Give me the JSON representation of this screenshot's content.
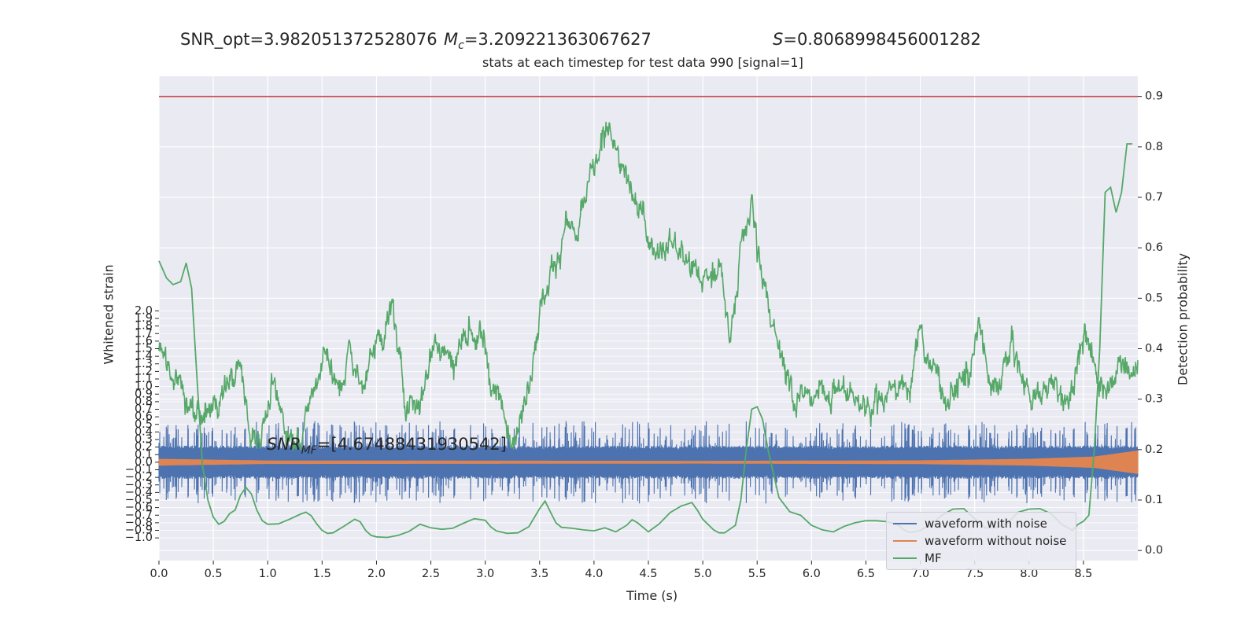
{
  "header": {
    "snr_opt": "SNR_opt=3.982051372528076",
    "mc_symbol": "M",
    "mc_sub": "c",
    "mc_value": "=3.209221363067627",
    "s_symbol": "S",
    "s_value": "=0.8068998456001282"
  },
  "chart_data": {
    "type": "line",
    "title": "stats at each timestep for test data 990 [signal=1]",
    "xlabel": "Time (s)",
    "ylabel_left": "Whitened strain",
    "ylabel_right": "Detection probability",
    "xlim": [
      0.0,
      9.0
    ],
    "ylim_left": [
      -1.3,
      5.1
    ],
    "ylim_right": [
      -0.02,
      0.94
    ],
    "xticks": [
      "0.0",
      "0.5",
      "1.0",
      "1.5",
      "2.0",
      "2.5",
      "3.0",
      "3.5",
      "4.0",
      "4.5",
      "5.0",
      "5.5",
      "6.0",
      "6.5",
      "7.0",
      "7.5",
      "8.0",
      "8.5"
    ],
    "yticks_left": [
      "2.0",
      "1.9",
      "1.8",
      "1.7",
      "1.6",
      "1.5",
      "1.4",
      "1.3",
      "1.2",
      "1.1",
      "1.0",
      "0.9",
      "0.8",
      "0.7",
      "0.6",
      "0.5",
      "0.4",
      "0.3",
      "0.2",
      "0.1",
      "0.0",
      "−0.1",
      "−0.2",
      "−0.3",
      "−0.4",
      "−0.5",
      "−0.6",
      "−0.7",
      "−0.8",
      "−0.9",
      "−1.0"
    ],
    "yticks_right": [
      "0.9",
      "0.8",
      "0.7",
      "0.6",
      "0.5",
      "0.4",
      "0.3",
      "0.2",
      "0.1",
      "0.0"
    ],
    "threshold": 0.9,
    "mf_annotation": {
      "symbol": "SNR",
      "sub": "MF",
      "value": "=[4.67488431930542]"
    },
    "colors": {
      "noisy": "#4c72b0",
      "clean": "#dd8452",
      "mf": "#55a868",
      "prob": "#55a868",
      "threshold": "#c44e52",
      "plot_bg": "#eaeaf2",
      "grid": "#ffffff"
    },
    "series": [
      {
        "name": "waveform with noise",
        "key": "noisy",
        "amplitude_core": 0.2,
        "amplitude_peak": 0.55
      },
      {
        "name": "waveform without noise",
        "key": "clean",
        "amplitude": [
          [
            0.0,
            0.03
          ],
          [
            1.0,
            0.008
          ],
          [
            5.0,
            0.003
          ],
          [
            7.0,
            0.01
          ],
          [
            8.0,
            0.03
          ],
          [
            8.6,
            0.06
          ],
          [
            9.0,
            0.14
          ]
        ]
      },
      {
        "name": "MF",
        "key": "mf",
        "x": [
          0.0,
          0.07,
          0.13,
          0.2,
          0.25,
          0.3,
          0.35,
          0.4,
          0.45,
          0.5,
          0.55,
          0.6,
          0.65,
          0.7,
          0.75,
          0.8,
          0.85,
          0.9,
          0.95,
          1.0,
          1.1,
          1.2,
          1.3,
          1.35,
          1.4,
          1.45,
          1.5,
          1.55,
          1.6,
          1.7,
          1.8,
          1.85,
          1.9,
          1.95,
          2.0,
          2.1,
          2.2,
          2.3,
          2.4,
          2.5,
          2.6,
          2.7,
          2.8,
          2.9,
          3.0,
          3.05,
          3.1,
          3.2,
          3.3,
          3.4,
          3.5,
          3.55,
          3.6,
          3.65,
          3.7,
          3.8,
          3.9,
          4.0,
          4.1,
          4.2,
          4.3,
          4.35,
          4.4,
          4.5,
          4.6,
          4.7,
          4.8,
          4.9,
          4.95,
          5.0,
          5.1,
          5.15,
          5.2,
          5.3,
          5.35,
          5.4,
          5.45,
          5.5,
          5.55,
          5.6,
          5.7,
          5.8,
          5.9,
          6.0,
          6.1,
          6.2,
          6.3,
          6.4,
          6.5,
          6.6,
          6.7,
          6.8,
          6.85,
          6.9,
          6.95,
          7.0,
          7.1,
          7.2,
          7.3,
          7.4,
          7.5,
          7.6,
          7.7,
          7.8,
          7.9,
          8.0,
          8.1,
          8.2,
          8.3,
          8.4,
          8.45,
          8.5,
          8.55,
          8.6,
          8.65,
          8.7,
          8.75,
          8.8,
          8.85,
          8.9,
          8.95
        ],
        "values": [
          0.574,
          0.54,
          0.527,
          0.533,
          0.57,
          0.52,
          0.34,
          0.17,
          0.1,
          0.066,
          0.052,
          0.058,
          0.073,
          0.08,
          0.11,
          0.125,
          0.112,
          0.08,
          0.059,
          0.052,
          0.053,
          0.062,
          0.072,
          0.076,
          0.069,
          0.053,
          0.04,
          0.034,
          0.035,
          0.048,
          0.062,
          0.057,
          0.04,
          0.03,
          0.027,
          0.026,
          0.03,
          0.038,
          0.052,
          0.045,
          0.042,
          0.044,
          0.054,
          0.063,
          0.06,
          0.047,
          0.039,
          0.034,
          0.035,
          0.047,
          0.083,
          0.098,
          0.076,
          0.055,
          0.046,
          0.044,
          0.041,
          0.039,
          0.045,
          0.037,
          0.05,
          0.061,
          0.055,
          0.037,
          0.053,
          0.075,
          0.088,
          0.095,
          0.08,
          0.062,
          0.041,
          0.035,
          0.035,
          0.05,
          0.1,
          0.2,
          0.28,
          0.285,
          0.26,
          0.2,
          0.105,
          0.077,
          0.07,
          0.05,
          0.041,
          0.037,
          0.048,
          0.055,
          0.059,
          0.059,
          0.057,
          0.05,
          0.041,
          0.036,
          0.037,
          0.04,
          0.052,
          0.07,
          0.082,
          0.083,
          0.063,
          0.045,
          0.045,
          0.054,
          0.076,
          0.082,
          0.083,
          0.073,
          0.052,
          0.04,
          0.052,
          0.058,
          0.07,
          0.2,
          0.4,
          0.71,
          0.72,
          0.67,
          0.71,
          0.806,
          0.806
        ]
      },
      {
        "name": "detection probability",
        "key": "prob",
        "anchors": [
          [
            0.0,
            0.4
          ],
          [
            0.1,
            0.35
          ],
          [
            0.25,
            0.3
          ],
          [
            0.35,
            0.26
          ],
          [
            0.45,
            0.27
          ],
          [
            0.55,
            0.3
          ],
          [
            0.65,
            0.34
          ],
          [
            0.75,
            0.36
          ],
          [
            0.85,
            0.22
          ],
          [
            0.95,
            0.25
          ],
          [
            1.05,
            0.31
          ],
          [
            1.15,
            0.25
          ],
          [
            1.25,
            0.22
          ],
          [
            1.35,
            0.27
          ],
          [
            1.45,
            0.34
          ],
          [
            1.55,
            0.41
          ],
          [
            1.65,
            0.3
          ],
          [
            1.75,
            0.39
          ],
          [
            1.85,
            0.33
          ],
          [
            2.0,
            0.41
          ],
          [
            2.15,
            0.48
          ],
          [
            2.25,
            0.3
          ],
          [
            2.4,
            0.3
          ],
          [
            2.55,
            0.43
          ],
          [
            2.7,
            0.38
          ],
          [
            2.85,
            0.44
          ],
          [
            3.0,
            0.4
          ],
          [
            3.1,
            0.31
          ],
          [
            3.2,
            0.24
          ],
          [
            3.35,
            0.28
          ],
          [
            3.5,
            0.48
          ],
          [
            3.65,
            0.58
          ],
          [
            3.75,
            0.65
          ],
          [
            3.85,
            0.6
          ],
          [
            3.95,
            0.72
          ],
          [
            4.05,
            0.77
          ],
          [
            4.15,
            0.86
          ],
          [
            4.25,
            0.75
          ],
          [
            4.4,
            0.68
          ],
          [
            4.55,
            0.6
          ],
          [
            4.7,
            0.62
          ],
          [
            4.85,
            0.57
          ],
          [
            5.0,
            0.53
          ],
          [
            5.15,
            0.58
          ],
          [
            5.25,
            0.4
          ],
          [
            5.35,
            0.6
          ],
          [
            5.45,
            0.7
          ],
          [
            5.55,
            0.52
          ],
          [
            5.7,
            0.42
          ],
          [
            5.85,
            0.3
          ],
          [
            6.0,
            0.3
          ],
          [
            6.2,
            0.33
          ],
          [
            6.35,
            0.3
          ],
          [
            6.5,
            0.29
          ],
          [
            6.6,
            0.3
          ],
          [
            6.75,
            0.32
          ],
          [
            6.9,
            0.33
          ],
          [
            7.0,
            0.43
          ],
          [
            7.1,
            0.37
          ],
          [
            7.25,
            0.3
          ],
          [
            7.35,
            0.33
          ],
          [
            7.45,
            0.36
          ],
          [
            7.55,
            0.45
          ],
          [
            7.65,
            0.3
          ],
          [
            7.75,
            0.35
          ],
          [
            7.85,
            0.41
          ],
          [
            7.95,
            0.33
          ],
          [
            8.1,
            0.3
          ],
          [
            8.2,
            0.33
          ],
          [
            8.35,
            0.3
          ],
          [
            8.5,
            0.42
          ],
          [
            8.6,
            0.36
          ],
          [
            8.7,
            0.33
          ],
          [
            8.8,
            0.38
          ],
          [
            8.9,
            0.36
          ],
          [
            9.0,
            0.36
          ]
        ]
      }
    ],
    "legend": [
      "waveform with noise",
      "waveform without noise",
      "MF"
    ],
    "legend_position": "lower-right",
    "grid": true
  }
}
